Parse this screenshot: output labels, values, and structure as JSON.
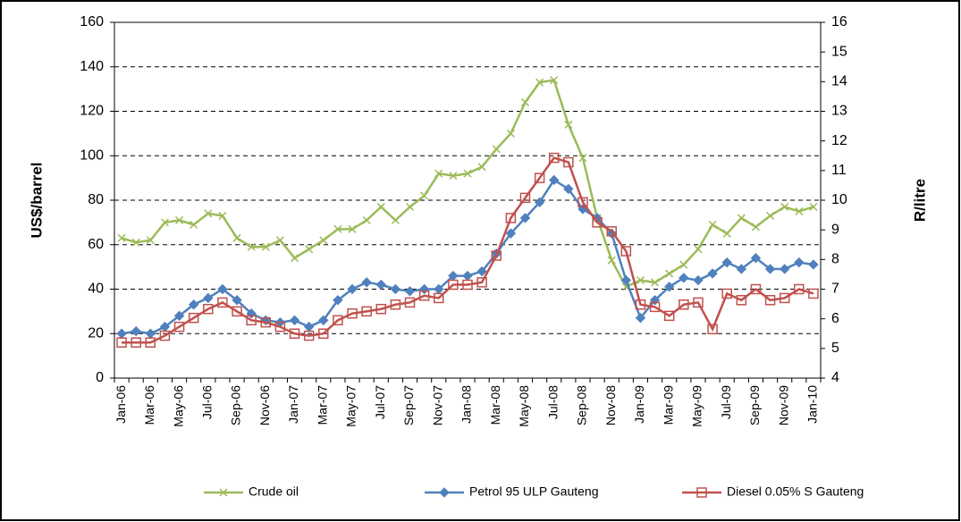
{
  "chart_data": {
    "type": "line",
    "y_label": "US$/barrel",
    "y2_label": "R/litre",
    "categories": [
      "Jan-06",
      null,
      "Mar-06",
      null,
      "May-06",
      null,
      "Jul-06",
      null,
      "Sep-06",
      null,
      "Nov-06",
      null,
      "Jan-07",
      null,
      "Mar-07",
      null,
      "May-07",
      null,
      "Jul-07",
      null,
      "Sep-07",
      null,
      "Nov-07",
      null,
      "Jan-08",
      null,
      "Mar-08",
      null,
      "May-08",
      null,
      "Jul-08",
      null,
      "Sep-08",
      null,
      "Nov-08",
      null,
      "Jan-09",
      null,
      "Mar-09",
      null,
      "May-09",
      null,
      "Jul-09",
      null,
      "Sep-09",
      null,
      "Nov-09",
      null,
      "Jan-10"
    ],
    "series": [
      {
        "name": "Crude oil",
        "color": "#9bbb59",
        "marker": "x",
        "axis": "y",
        "values": [
          63,
          61,
          62,
          70,
          71,
          69,
          74,
          73,
          63,
          59,
          59,
          62,
          54,
          58,
          62,
          67,
          67,
          71,
          77,
          71,
          77,
          82,
          92,
          91,
          92,
          95,
          103,
          110,
          124,
          133,
          134,
          114,
          99,
          72,
          53,
          41,
          44,
          43,
          47,
          51,
          58,
          69,
          65,
          72,
          68,
          73,
          77,
          75,
          77
        ]
      },
      {
        "name": "Petrol 95 ULP Gauteng",
        "color": "#4f81bd",
        "marker": "diamond",
        "axis": "y2",
        "values": [
          5.5,
          5.58,
          5.5,
          5.73,
          6.1,
          6.48,
          6.7,
          7.0,
          6.63,
          6.18,
          5.95,
          5.88,
          5.95,
          5.73,
          5.95,
          6.63,
          7.0,
          7.23,
          7.15,
          7.0,
          6.93,
          7.0,
          7.0,
          7.45,
          7.45,
          7.6,
          8.2,
          8.88,
          9.4,
          9.93,
          10.68,
          10.38,
          9.7,
          9.4,
          8.88,
          7.3,
          6.03,
          6.63,
          7.08,
          7.38,
          7.3,
          7.53,
          7.9,
          7.68,
          8.05,
          7.68,
          7.68,
          7.9,
          7.83
        ]
      },
      {
        "name": "Diesel 0.05% S Gauteng",
        "color": "#c0504d",
        "marker": "square",
        "axis": "y2",
        "values": [
          5.2,
          5.2,
          5.2,
          5.43,
          5.73,
          6.03,
          6.33,
          6.55,
          6.25,
          5.95,
          5.88,
          5.73,
          5.5,
          5.43,
          5.5,
          5.95,
          6.18,
          6.25,
          6.33,
          6.48,
          6.55,
          6.78,
          6.7,
          7.15,
          7.15,
          7.23,
          8.13,
          9.4,
          10.08,
          10.75,
          11.43,
          11.28,
          9.93,
          9.25,
          8.95,
          8.28,
          6.48,
          6.4,
          6.1,
          6.48,
          6.55,
          5.65,
          6.85,
          6.63,
          7.0,
          6.63,
          6.7,
          7.0,
          6.85
        ]
      }
    ],
    "ylim": [
      0,
      160
    ],
    "yticks": [
      0,
      20,
      40,
      60,
      80,
      100,
      120,
      140,
      160
    ],
    "y2lim": [
      4,
      16
    ],
    "y2ticks": [
      4,
      5,
      6,
      7,
      8,
      9,
      10,
      11,
      12,
      13,
      14,
      15,
      16
    ],
    "grid": true,
    "legend": "bottom"
  }
}
